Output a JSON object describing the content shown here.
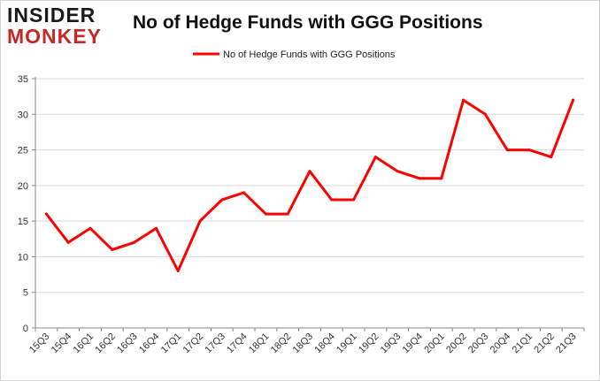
{
  "brand": {
    "line1": "INSIDER",
    "line2": "MONKEY"
  },
  "chart_data": {
    "type": "line",
    "title": "No of Hedge Funds with GGG Positions",
    "xlabel": "",
    "ylabel": "",
    "categories": [
      "15Q3",
      "15Q4",
      "16Q1",
      "16Q2",
      "16Q3",
      "16Q4",
      "17Q1",
      "17Q2",
      "17Q3",
      "17Q4",
      "18Q1",
      "18Q2",
      "18Q3",
      "18Q4",
      "19Q1",
      "19Q2",
      "19Q3",
      "19Q4",
      "20Q1",
      "20Q2",
      "20Q3",
      "20Q4",
      "21Q1",
      "21Q2",
      "21Q3"
    ],
    "series": [
      {
        "name": "No of Hedge Funds with GGG Positions",
        "values": [
          16,
          12,
          14,
          11,
          12,
          14,
          8,
          15,
          18,
          19,
          16,
          16,
          22,
          18,
          18,
          24,
          22,
          21,
          21,
          32,
          30,
          25,
          25,
          24,
          32
        ],
        "color": "#ff0000"
      }
    ],
    "ylim": [
      0,
      35
    ],
    "yticks": [
      0,
      5,
      10,
      15,
      20,
      25,
      30,
      35
    ],
    "grid": "horizontal",
    "legend": "top-center"
  }
}
